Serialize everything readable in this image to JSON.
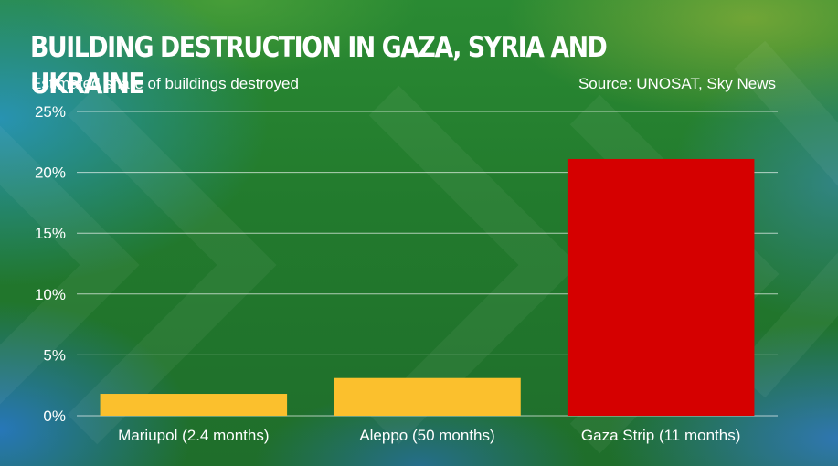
{
  "header": {
    "title": "BUILDING DESTRUCTION IN GAZA, SYRIA AND UKRAINE",
    "subtitle": "Estimated share of buildings destroyed",
    "source": "Source: UNOSAT, Sky News"
  },
  "chart_data": {
    "type": "bar",
    "title": "BUILDING DESTRUCTION IN GAZA, SYRIA AND UKRAINE",
    "subtitle": "Estimated share of buildings destroyed",
    "categories": [
      "Mariupol (2.4 months)",
      "Aleppo (50 months)",
      "Gaza Strip (11 months)"
    ],
    "values": [
      1.8,
      3.1,
      21.1
    ],
    "colors": [
      "#fbc02d",
      "#fbc02d",
      "#d50000"
    ],
    "ylim": [
      0,
      25
    ],
    "yticks": [
      0,
      5,
      10,
      15,
      20,
      25
    ],
    "ytick_labels": [
      "0%",
      "5%",
      "10%",
      "15%",
      "20%",
      "25%"
    ],
    "grid": true,
    "xlabel": "",
    "ylabel": ""
  }
}
